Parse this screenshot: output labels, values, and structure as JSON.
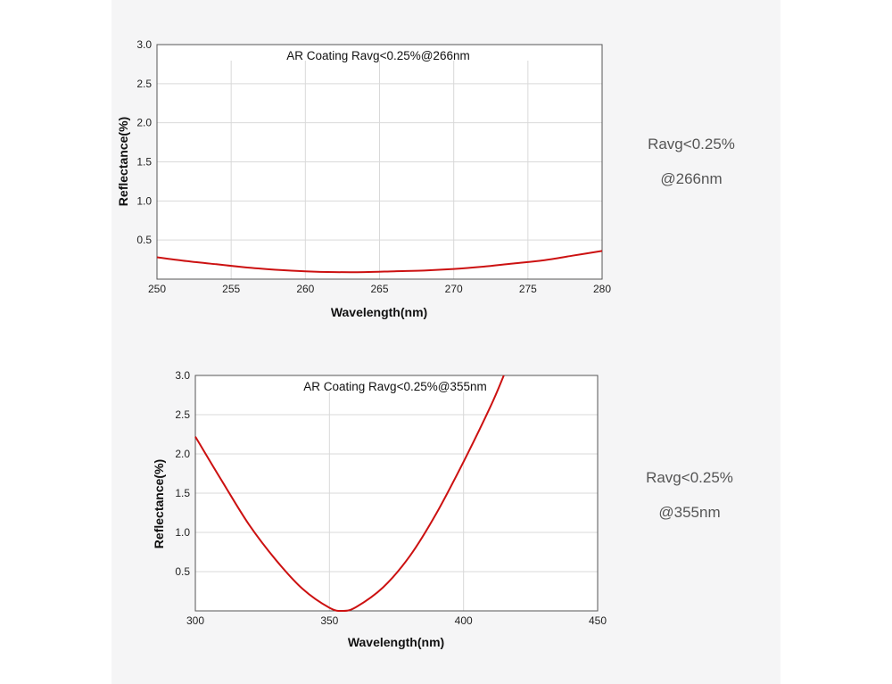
{
  "chart_data": [
    {
      "type": "line",
      "title": "AR Coating Ravg<0.25%@266nm",
      "xlabel": "Wavelength(nm)",
      "ylabel": "Reflectance(%)",
      "xlim": [
        250,
        280
      ],
      "ylim": [
        0,
        3.0
      ],
      "xticks": [
        "250",
        "255",
        "260",
        "265",
        "270",
        "275",
        "280"
      ],
      "yticks": [
        "0.5",
        "1.0",
        "1.5",
        "2.0",
        "2.5",
        "3.0"
      ],
      "grid": true,
      "series": [
        {
          "color": "#cc1111",
          "x": [
            250,
            252,
            254,
            256,
            258,
            260,
            262,
            264,
            266,
            268,
            270,
            272,
            274,
            276,
            278,
            280
          ],
          "y": [
            0.28,
            0.23,
            0.19,
            0.15,
            0.12,
            0.1,
            0.09,
            0.09,
            0.1,
            0.11,
            0.13,
            0.16,
            0.2,
            0.24,
            0.3,
            0.36
          ]
        }
      ]
    },
    {
      "type": "line",
      "title": "AR Coating Ravg<0.25%@355nm",
      "xlabel": "Wavelength(nm)",
      "ylabel": "Reflectance(%)",
      "xlim": [
        300,
        450
      ],
      "ylim": [
        0,
        3.0
      ],
      "xticks": [
        "300",
        "350",
        "400",
        "450"
      ],
      "yticks": [
        "0.5",
        "1.0",
        "1.5",
        "2.0",
        "2.5",
        "3.0"
      ],
      "grid": true,
      "series": [
        {
          "color": "#cc1111",
          "x": [
            300,
            310,
            320,
            330,
            340,
            350,
            355,
            360,
            370,
            380,
            390,
            400,
            410,
            415
          ],
          "y": [
            2.22,
            1.65,
            1.1,
            0.65,
            0.28,
            0.04,
            0.0,
            0.05,
            0.3,
            0.7,
            1.25,
            1.9,
            2.6,
            3.0
          ]
        }
      ]
    }
  ],
  "side_labels": [
    {
      "line1": "Ravg<0.25%",
      "line2": "@266nm"
    },
    {
      "line1": "Ravg<0.25%",
      "line2": "@355nm"
    }
  ]
}
